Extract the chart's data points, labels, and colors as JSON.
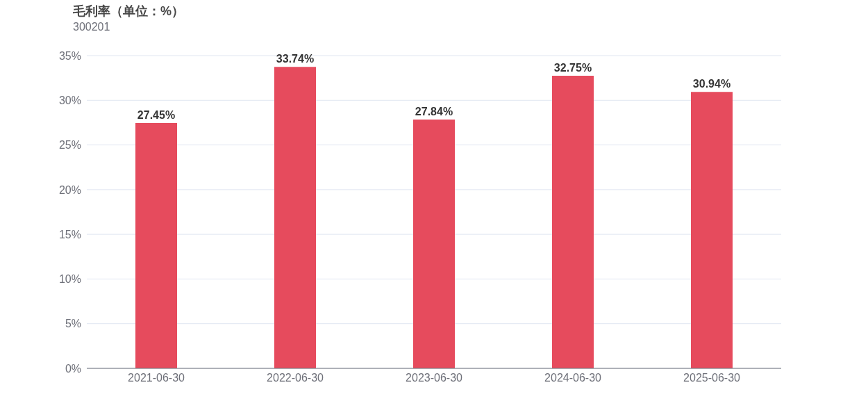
{
  "chart_data": {
    "type": "bar",
    "title": "毛利率（单位：%）",
    "subtitle": "300201",
    "categories": [
      "2021-06-30",
      "2022-06-30",
      "2023-06-30",
      "2024-06-30",
      "2025-06-30"
    ],
    "values": [
      27.45,
      33.74,
      27.84,
      32.75,
      30.94
    ],
    "value_labels": [
      "27.45%",
      "33.74%",
      "27.84%",
      "32.75%",
      "30.94%"
    ],
    "color": "#e64b5d",
    "ylim": [
      0,
      35
    ],
    "yticks": [
      {
        "value": 0,
        "label": "0%"
      },
      {
        "value": 5,
        "label": "5%"
      },
      {
        "value": 10,
        "label": "10%"
      },
      {
        "value": 15,
        "label": "15%"
      },
      {
        "value": 20,
        "label": "20%"
      },
      {
        "value": 25,
        "label": "25%"
      },
      {
        "value": 30,
        "label": "30%"
      },
      {
        "value": 35,
        "label": "35%"
      }
    ],
    "grid": "y",
    "legend": false
  }
}
